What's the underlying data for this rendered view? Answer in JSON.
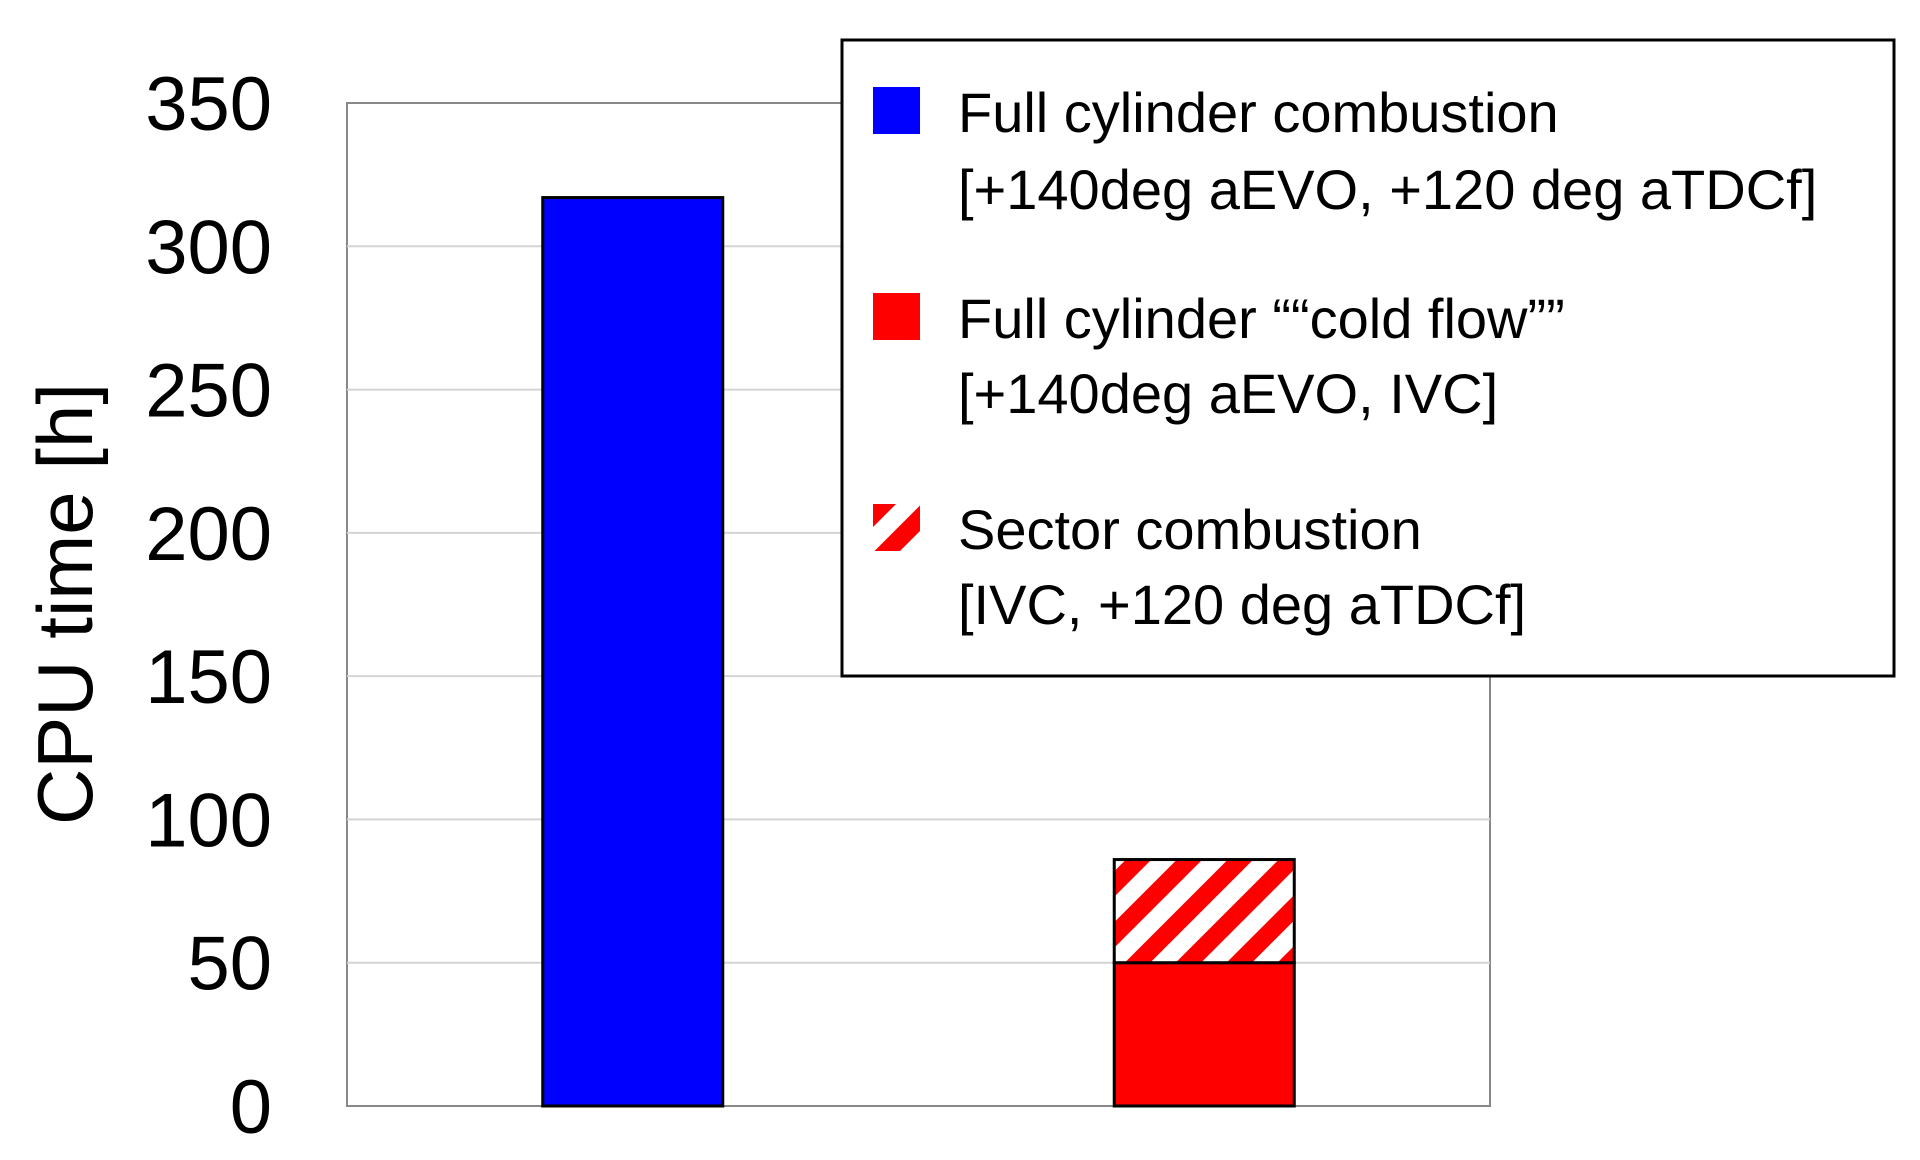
{
  "chart_data": {
    "type": "bar",
    "ylabel": "CPU time [h]",
    "ylim": [
      0,
      350
    ],
    "yticks": [
      0,
      50,
      100,
      150,
      200,
      250,
      300,
      350
    ],
    "grid": true,
    "legend_position": "top-right",
    "categories": [
      "",
      ""
    ],
    "stacked": true,
    "series": [
      {
        "name": "Full cylinder combustion",
        "detail": "[+140deg aEVO, +120 deg aTDCf]",
        "color": "#0000ff",
        "pattern": "solid",
        "values": [
          317,
          0
        ]
      },
      {
        "name": "Full cylinder ““cold flow””",
        "detail": "[+140deg aEVO, IVC]",
        "color": "#ff0000",
        "pattern": "solid",
        "values": [
          0,
          50
        ]
      },
      {
        "name": "Sector combustion",
        "detail": "[IVC, +120 deg aTDCf]",
        "color": "#ff0000",
        "pattern": "diagonal-hatch",
        "values": [
          0,
          36
        ]
      }
    ]
  }
}
